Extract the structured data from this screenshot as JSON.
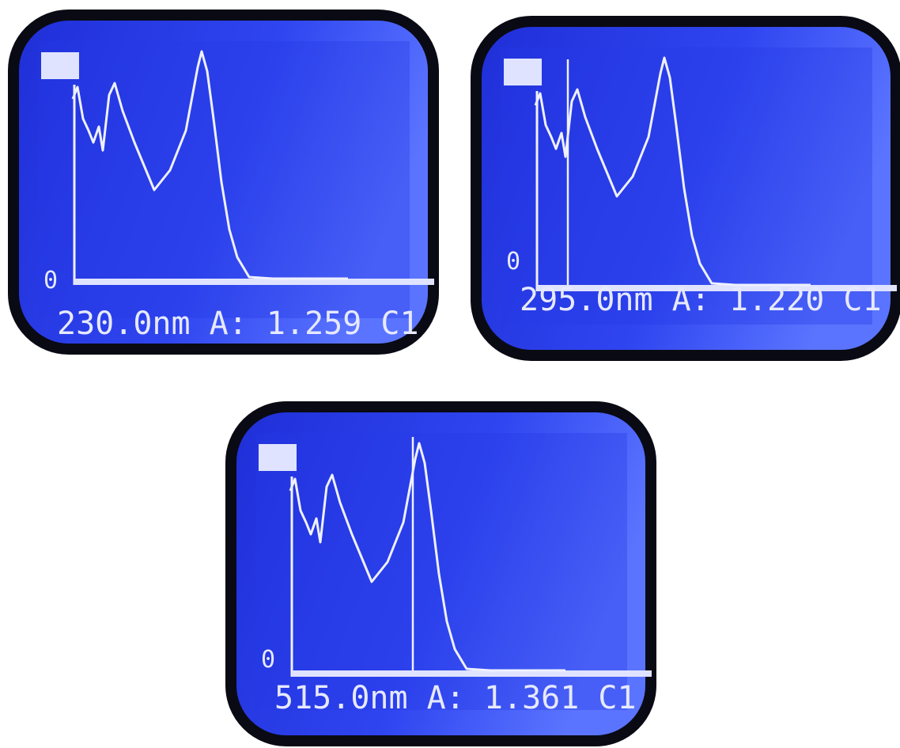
{
  "screens": [
    {
      "zero_label": "0",
      "status": "230.0nm A: 1.259 C1"
    },
    {
      "zero_label": "0",
      "status": "295.0nm A: 1.220 C1"
    },
    {
      "zero_label": "0",
      "status": "515.0nm A: 1.361 C1"
    }
  ]
}
